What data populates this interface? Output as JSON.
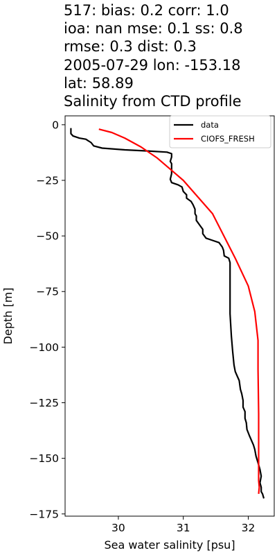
{
  "title_lines": [
    "517: bias: 0.2  corr: 1.0",
    "ioa: nan  mse: 0.1  ss: 0.8",
    "rmse: 0.3  dist: 0.3",
    "2005-07-29 lon: -153.18",
    "lat: 58.89",
    "Salinity from CTD profile"
  ],
  "chart_data": {
    "type": "line",
    "xlabel": "Sea water salinity [psu]",
    "ylabel": "Depth [m]",
    "xlim": [
      29.18,
      32.4
    ],
    "ylim": [
      -176,
      4
    ],
    "x_ticks": [
      30,
      31,
      32
    ],
    "x_tick_labels": [
      "30",
      "31",
      "32"
    ],
    "y_ticks": [
      0,
      -25,
      -50,
      -75,
      -100,
      -125,
      -150,
      -175
    ],
    "y_tick_labels": [
      "0",
      "−25",
      "−50",
      "−75",
      "−100",
      "−125",
      "−150",
      "−175"
    ],
    "grid": false,
    "legend": "top-right",
    "series": [
      {
        "name": "data",
        "color": "#000000",
        "points": [
          [
            29.27,
            -1.5
          ],
          [
            29.27,
            -4
          ],
          [
            29.3,
            -5
          ],
          [
            29.4,
            -6
          ],
          [
            29.5,
            -6.5
          ],
          [
            29.58,
            -8
          ],
          [
            29.62,
            -9.5
          ],
          [
            29.75,
            -10.5
          ],
          [
            30.1,
            -11.3
          ],
          [
            30.45,
            -11.8
          ],
          [
            30.75,
            -12.3
          ],
          [
            30.82,
            -13
          ],
          [
            30.82,
            -14.5
          ],
          [
            30.8,
            -16.5
          ],
          [
            30.82,
            -17.5
          ],
          [
            30.82,
            -22
          ],
          [
            30.8,
            -24.5
          ],
          [
            30.82,
            -26
          ],
          [
            30.92,
            -27
          ],
          [
            30.98,
            -28
          ],
          [
            31.0,
            -30
          ],
          [
            31.05,
            -31.5
          ],
          [
            31.05,
            -33
          ],
          [
            31.12,
            -34.5
          ],
          [
            31.15,
            -36
          ],
          [
            31.18,
            -38
          ],
          [
            31.18,
            -40
          ],
          [
            31.2,
            -41
          ],
          [
            31.2,
            -43
          ],
          [
            31.25,
            -45
          ],
          [
            31.3,
            -47
          ],
          [
            31.3,
            -49
          ],
          [
            31.35,
            -51
          ],
          [
            31.45,
            -52
          ],
          [
            31.55,
            -53
          ],
          [
            31.6,
            -55
          ],
          [
            31.62,
            -56.5
          ],
          [
            31.63,
            -59
          ],
          [
            31.7,
            -60
          ],
          [
            31.72,
            -62
          ],
          [
            31.72,
            -75
          ],
          [
            31.72,
            -85
          ],
          [
            31.74,
            -95
          ],
          [
            31.76,
            -102
          ],
          [
            31.78,
            -108
          ],
          [
            31.8,
            -111
          ],
          [
            31.83,
            -113
          ],
          [
            31.86,
            -115
          ],
          [
            31.88,
            -119
          ],
          [
            31.9,
            -121
          ],
          [
            31.92,
            -124
          ],
          [
            31.92,
            -127
          ],
          [
            31.95,
            -129
          ],
          [
            31.95,
            -132
          ],
          [
            31.97,
            -134
          ],
          [
            31.98,
            -137
          ],
          [
            32.02,
            -140
          ],
          [
            32.05,
            -142
          ],
          [
            32.08,
            -144
          ],
          [
            32.1,
            -146
          ],
          [
            32.12,
            -149
          ],
          [
            32.15,
            -152
          ],
          [
            32.18,
            -155
          ],
          [
            32.2,
            -158
          ],
          [
            32.18,
            -161
          ],
          [
            32.2,
            -163
          ],
          [
            32.2,
            -165
          ],
          [
            32.22,
            -166
          ],
          [
            32.24,
            -168
          ]
        ]
      },
      {
        "name": "CIOFS_FRESH",
        "color": "#ff0000",
        "points": [
          [
            29.7,
            -2
          ],
          [
            29.9,
            -3.5
          ],
          [
            30.1,
            -6
          ],
          [
            30.35,
            -10
          ],
          [
            30.6,
            -15
          ],
          [
            31.0,
            -25
          ],
          [
            31.45,
            -40
          ],
          [
            31.8,
            -60
          ],
          [
            32.0,
            -72.5
          ],
          [
            32.1,
            -84
          ],
          [
            32.15,
            -97
          ],
          [
            32.15,
            -110
          ],
          [
            32.16,
            -130
          ],
          [
            32.16,
            -150
          ],
          [
            32.16,
            -160
          ],
          [
            32.17,
            -163
          ],
          [
            32.16,
            -166
          ]
        ]
      }
    ]
  }
}
